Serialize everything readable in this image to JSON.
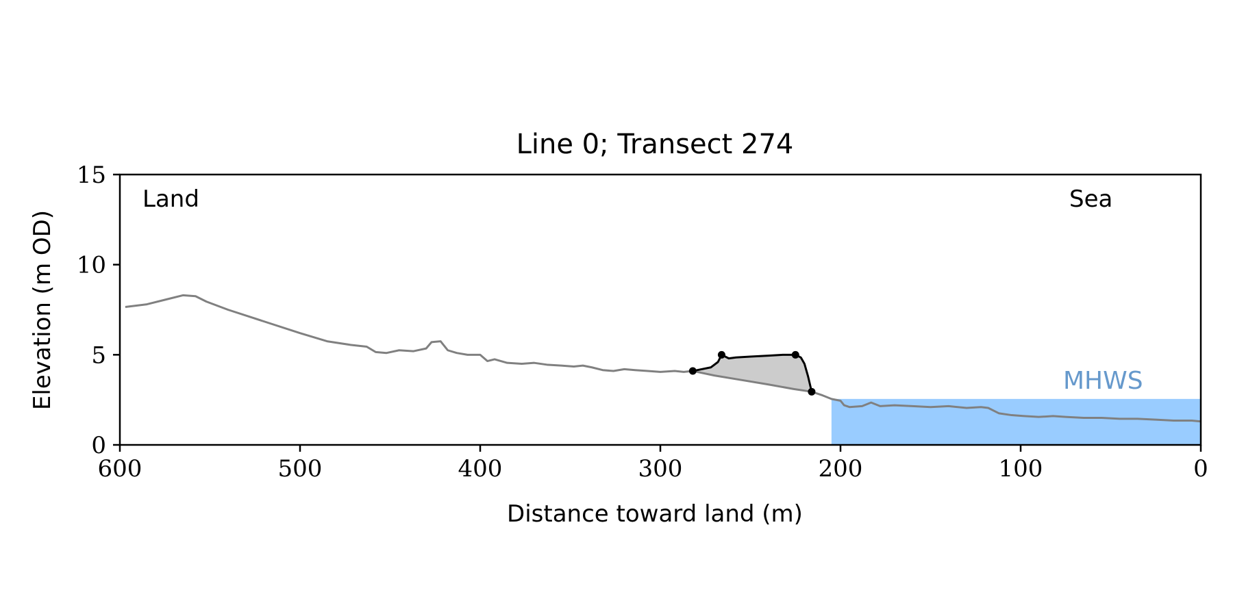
{
  "chart_data": {
    "type": "line",
    "title": "Line 0; Transect 274",
    "xlabel": "Distance toward land (m)",
    "ylabel": "Elevation (m OD)",
    "xlim": [
      600,
      0
    ],
    "ylim": [
      0,
      15
    ],
    "xticks": [
      600,
      500,
      400,
      300,
      200,
      100,
      0
    ],
    "yticks": [
      0,
      5,
      10,
      15
    ],
    "grid": false,
    "annotations": {
      "left": "Land",
      "right": "Sea"
    },
    "mhws": {
      "label": "MHWS",
      "level": 2.55,
      "from_x": 205,
      "to_x": 0,
      "color": "#99ccff",
      "label_color": "#6699cc"
    },
    "profile": {
      "color": "#808080",
      "points": [
        [
          597,
          7.65
        ],
        [
          585,
          7.8
        ],
        [
          575,
          8.05
        ],
        [
          565,
          8.3
        ],
        [
          558,
          8.25
        ],
        [
          552,
          7.95
        ],
        [
          540,
          7.5
        ],
        [
          520,
          6.85
        ],
        [
          500,
          6.2
        ],
        [
          485,
          5.75
        ],
        [
          472,
          5.55
        ],
        [
          463,
          5.45
        ],
        [
          458,
          5.15
        ],
        [
          452,
          5.1
        ],
        [
          445,
          5.25
        ],
        [
          437,
          5.2
        ],
        [
          430,
          5.35
        ],
        [
          427,
          5.7
        ],
        [
          422,
          5.75
        ],
        [
          418,
          5.25
        ],
        [
          413,
          5.1
        ],
        [
          407,
          5.0
        ],
        [
          400,
          5.0
        ],
        [
          396,
          4.65
        ],
        [
          392,
          4.75
        ],
        [
          385,
          4.55
        ],
        [
          377,
          4.5
        ],
        [
          370,
          4.55
        ],
        [
          363,
          4.45
        ],
        [
          355,
          4.4
        ],
        [
          348,
          4.35
        ],
        [
          343,
          4.4
        ],
        [
          338,
          4.3
        ],
        [
          332,
          4.15
        ],
        [
          326,
          4.1
        ],
        [
          320,
          4.2
        ],
        [
          314,
          4.15
        ],
        [
          307,
          4.1
        ],
        [
          300,
          4.05
        ],
        [
          292,
          4.1
        ],
        [
          287,
          4.05
        ],
        [
          282,
          4.1
        ],
        [
          270,
          3.85
        ],
        [
          255,
          3.6
        ],
        [
          240,
          3.35
        ],
        [
          226,
          3.1
        ],
        [
          216,
          2.95
        ],
        [
          210,
          2.75
        ],
        [
          205,
          2.55
        ],
        [
          200,
          2.45
        ],
        [
          198,
          2.2
        ],
        [
          195,
          2.1
        ],
        [
          188,
          2.15
        ],
        [
          183,
          2.35
        ],
        [
          178,
          2.15
        ],
        [
          170,
          2.2
        ],
        [
          160,
          2.15
        ],
        [
          150,
          2.1
        ],
        [
          140,
          2.15
        ],
        [
          130,
          2.05
        ],
        [
          122,
          2.1
        ],
        [
          118,
          2.05
        ],
        [
          112,
          1.75
        ],
        [
          105,
          1.65
        ],
        [
          98,
          1.6
        ],
        [
          90,
          1.55
        ],
        [
          82,
          1.6
        ],
        [
          75,
          1.55
        ],
        [
          65,
          1.5
        ],
        [
          55,
          1.5
        ],
        [
          45,
          1.45
        ],
        [
          35,
          1.45
        ],
        [
          25,
          1.4
        ],
        [
          15,
          1.35
        ],
        [
          5,
          1.35
        ],
        [
          0,
          1.3
        ]
      ]
    },
    "feature": {
      "line_color": "#000000",
      "fill_color": "#cccccc",
      "points": [
        [
          282,
          4.1
        ],
        [
          272,
          4.3
        ],
        [
          268,
          4.6
        ],
        [
          266,
          5.0
        ],
        [
          262,
          4.8
        ],
        [
          258,
          4.85
        ],
        [
          250,
          4.9
        ],
        [
          240,
          4.95
        ],
        [
          232,
          5.0
        ],
        [
          225,
          5.0
        ],
        [
          222,
          4.85
        ],
        [
          220,
          4.5
        ],
        [
          218,
          3.8
        ],
        [
          216,
          2.95
        ]
      ],
      "markers": [
        [
          282,
          4.1
        ],
        [
          266,
          5.0
        ],
        [
          225,
          5.0
        ],
        [
          216,
          2.95
        ]
      ]
    }
  }
}
